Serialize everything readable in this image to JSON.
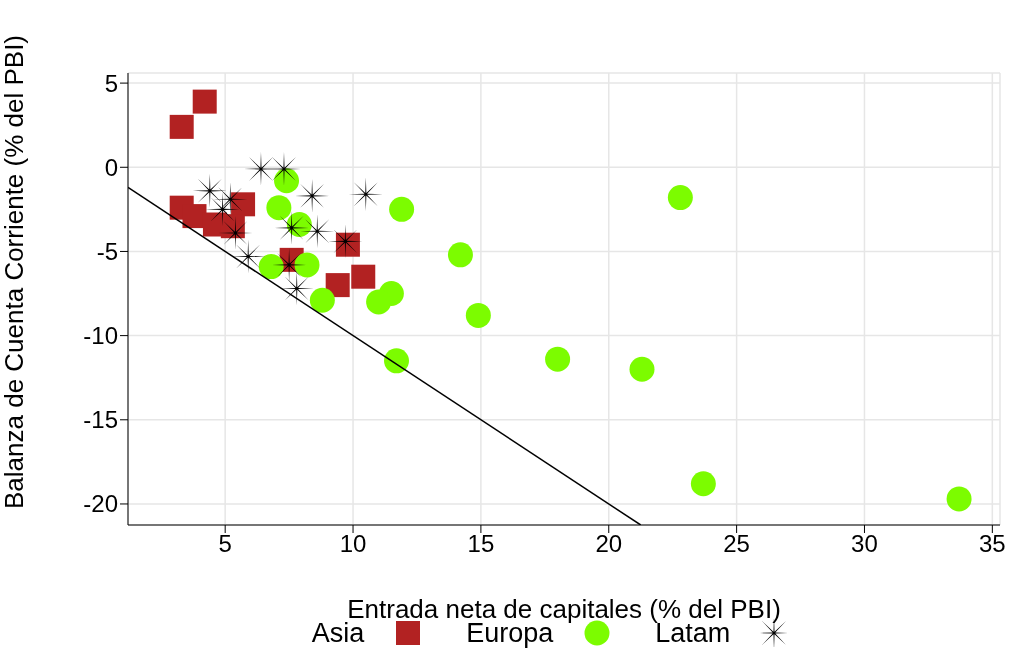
{
  "chart_data": {
    "type": "scatter",
    "xlabel": "Entrada neta de capitales (% del PBI)",
    "ylabel": "Balanza de Cuenta Corriente (% del PBI)",
    "xlim": [
      1.2,
      35.3
    ],
    "ylim": [
      -21.25,
      5.6
    ],
    "xticks": [
      5,
      10,
      15,
      20,
      25,
      30,
      35
    ],
    "yticks": [
      5,
      0,
      -5,
      -10,
      -15,
      -20
    ],
    "grid": true,
    "legend": "bottom",
    "series": [
      {
        "name": "Asia",
        "color": "#b22222",
        "marker": "square",
        "x": [
          4.2,
          3.3,
          3.3,
          3.8,
          5.7,
          4.6,
          5.3,
          9.8,
          7.6,
          9.4,
          10.4
        ],
        "values": [
          3.9,
          2.4,
          -2.4,
          -2.9,
          -2.2,
          -3.4,
          -3.5,
          -4.6,
          -5.5,
          -7.0,
          -6.5
        ]
      },
      {
        "name": "Europa",
        "color": "#7cfc00",
        "marker": "circle",
        "x": [
          7.4,
          7.1,
          7.9,
          6.8,
          8.2,
          8.8,
          11.9,
          11.5,
          11.0,
          11.7,
          14.2,
          14.9,
          18.0,
          21.3,
          22.8,
          23.7,
          33.7
        ],
        "values": [
          -0.8,
          -2.4,
          -3.4,
          -5.9,
          -5.8,
          -7.9,
          -2.5,
          -7.5,
          -8.0,
          -11.5,
          -5.2,
          -8.8,
          -11.4,
          -12.0,
          -1.8,
          -18.8,
          -19.7
        ]
      },
      {
        "name": "Latam",
        "color": "#000000",
        "marker": "star",
        "x": [
          6.4,
          7.3,
          4.4,
          5.2,
          4.9,
          8.4,
          10.5,
          7.6,
          8.6,
          5.4,
          9.7,
          5.9,
          7.5,
          7.8
        ],
        "values": [
          -0.1,
          -0.1,
          -1.4,
          -1.9,
          -2.5,
          -1.7,
          -1.6,
          -3.6,
          -3.8,
          -3.9,
          -4.4,
          -5.3,
          -5.8,
          -7.2
        ]
      },
      {
        "type": "line",
        "color": "#000000",
        "marker": "none",
        "x": [
          1.2,
          21.25
        ],
        "values": [
          -1.2,
          -21.25
        ]
      }
    ]
  }
}
